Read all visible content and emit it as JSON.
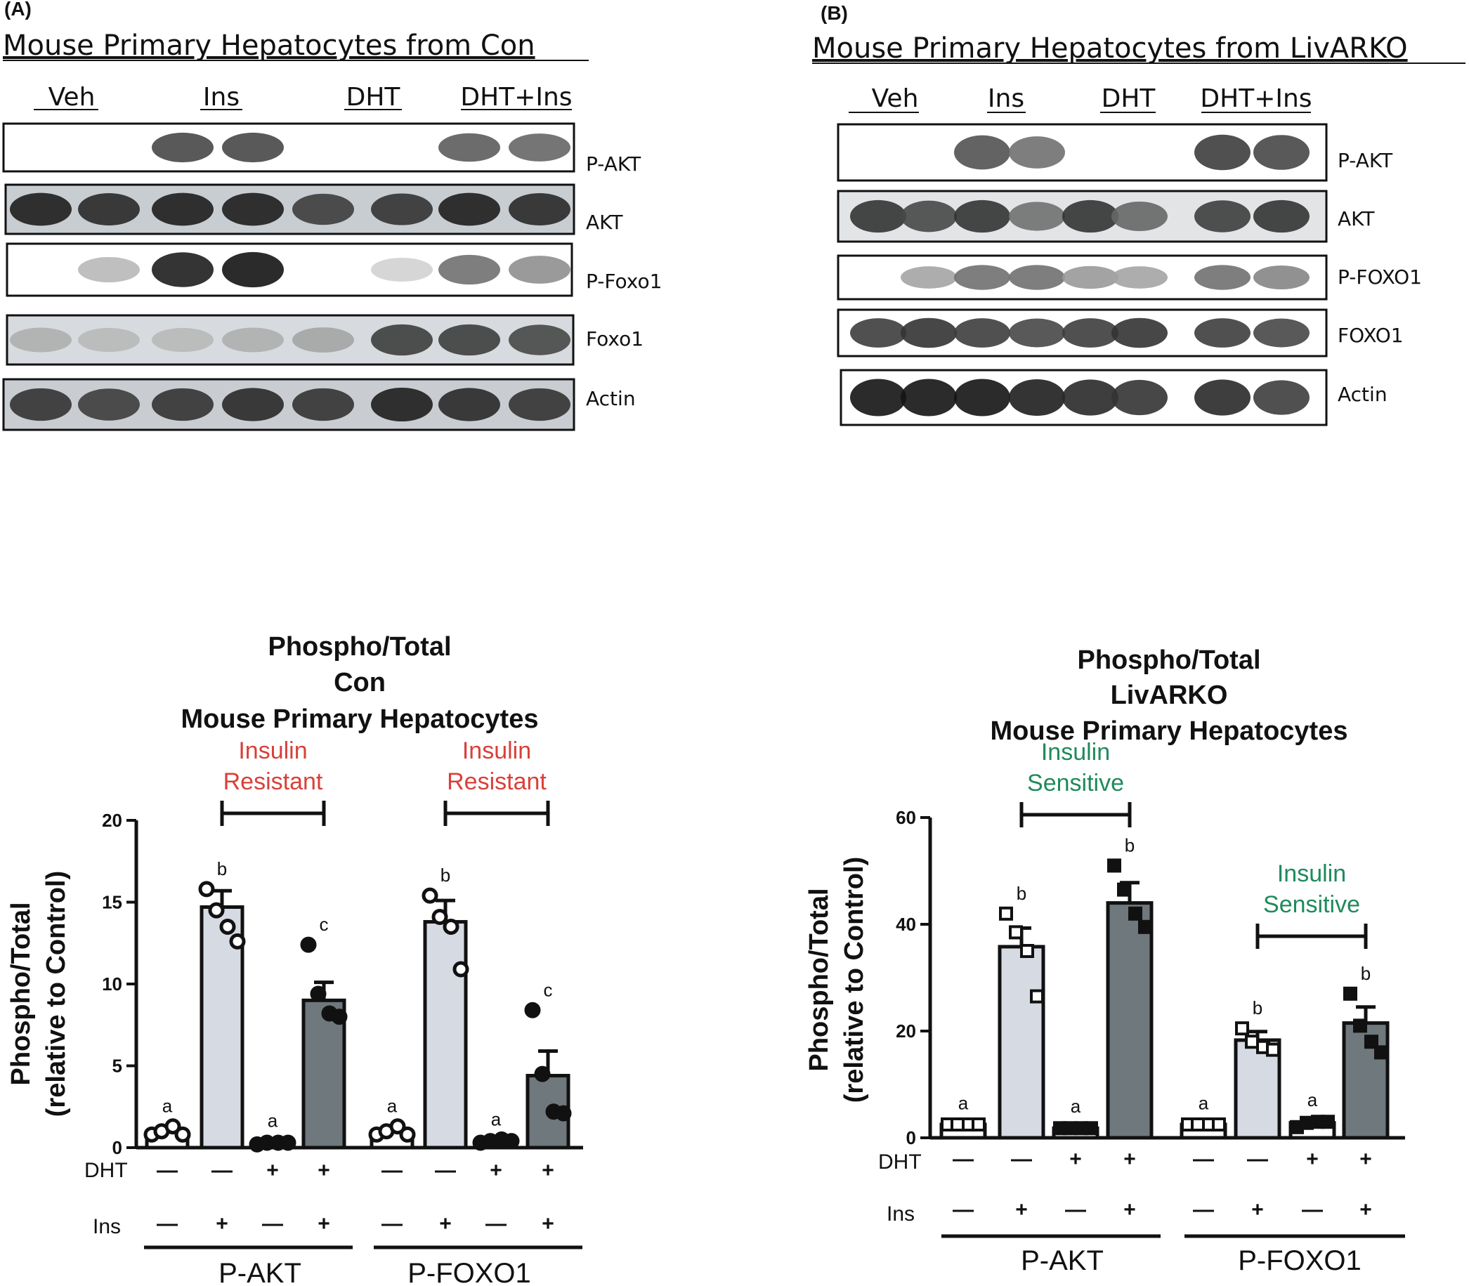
{
  "colors": {
    "insulin_resistant": "#d9403a",
    "insulin_sensitive": "#1f8a5c",
    "bar_light": "#d6dae2",
    "bar_dark": "#6f787c",
    "bar_white": "#ffffff"
  },
  "panel_a": {
    "label": "(A)",
    "title": "Mouse Primary Hepatocytes from Con",
    "lanes": [
      "Veh",
      "Ins",
      "DHT",
      "DHT+Ins"
    ],
    "blots": [
      "P-AKT",
      "AKT",
      "P-Foxo1",
      "Foxo1",
      "Actin"
    ]
  },
  "panel_b": {
    "label": "(B)",
    "title": "Mouse Primary Hepatocytes from LivARKO",
    "lanes": [
      "Veh",
      "Ins",
      "DHT",
      "DHT+Ins"
    ],
    "blots": [
      "P-AKT",
      "AKT",
      "P-FOXO1",
      "FOXO1",
      "Actin"
    ]
  },
  "chart_data": [
    {
      "type": "bar",
      "title_lines": [
        "Phospho/Total",
        "Con",
        "Mouse Primary Hepatocytes"
      ],
      "ylabel_lines": [
        "Phospho/Total",
        "(relative to Control)"
      ],
      "ylim": [
        0,
        20
      ],
      "yticks": [
        "0",
        "5",
        "10",
        "15",
        "20"
      ],
      "row_labels": [
        "DHT",
        "Ins"
      ],
      "dht": [
        "—",
        "—",
        "+",
        "+",
        "—",
        "—",
        "+",
        "+"
      ],
      "ins": [
        "—",
        "+",
        "—",
        "+",
        "—",
        "+",
        "—",
        "+"
      ],
      "groups": [
        "P-AKT",
        "P-FOXO1"
      ],
      "values": [
        1.0,
        14.7,
        0.3,
        9.0,
        1.0,
        13.8,
        0.4,
        4.4
      ],
      "errors": [
        0.3,
        1.0,
        0.1,
        1.1,
        0.3,
        1.3,
        0.1,
        1.5
      ],
      "letters": [
        "a",
        "b",
        "a",
        "c",
        "a",
        "b",
        "a",
        "c"
      ],
      "points": [
        [
          0.8,
          1.0,
          1.3,
          0.8
        ],
        [
          15.8,
          14.5,
          13.5,
          12.6
        ],
        [
          0.2,
          0.3,
          0.3,
          0.3
        ],
        [
          12.4,
          9.4,
          8.2,
          8.0
        ],
        [
          0.8,
          1.0,
          1.3,
          0.8
        ],
        [
          15.4,
          14.1,
          13.5,
          10.9
        ],
        [
          0.3,
          0.4,
          0.5,
          0.4
        ],
        [
          8.4,
          4.5,
          2.2,
          2.1
        ]
      ],
      "annotations": [
        {
          "text_lines": [
            "Insulin",
            "Resistant"
          ],
          "from_bar": 1,
          "to_bar": 3
        },
        {
          "text_lines": [
            "Insulin",
            "Resistant"
          ],
          "from_bar": 5,
          "to_bar": 7
        }
      ]
    },
    {
      "type": "bar",
      "title_lines": [
        "Phospho/Total",
        "LivARKO",
        "Mouse Primary Hepatocytes"
      ],
      "ylabel_lines": [
        "Phospho/Total",
        "(relative to Control)"
      ],
      "ylim": [
        0,
        60
      ],
      "yticks": [
        "0",
        "20",
        "40",
        "60"
      ],
      "row_labels": [
        "DHT",
        "Ins"
      ],
      "dht": [
        "—",
        "—",
        "+",
        "+",
        "—",
        "—",
        "+",
        "+"
      ],
      "ins": [
        "—",
        "+",
        "—",
        "+",
        "—",
        "+",
        "—",
        "+"
      ],
      "groups": [
        "P-AKT",
        "P-FOXO1"
      ],
      "values": [
        2.5,
        35.8,
        1.8,
        44.0,
        2.5,
        18.3,
        2.8,
        21.5
      ],
      "errors": [
        0.2,
        3.5,
        0.3,
        3.8,
        0.2,
        1.6,
        0.5,
        3.0
      ],
      "letters": [
        "a",
        "b",
        "a",
        "b",
        "a",
        "b",
        "a",
        "b"
      ],
      "points": [
        [
          2.5,
          2.5,
          2.5,
          2.5
        ],
        [
          42.0,
          38.5,
          35.0,
          26.5
        ],
        [
          1.8,
          1.8,
          1.8,
          1.8
        ],
        [
          51.0,
          46.5,
          42.0,
          39.5
        ],
        [
          2.5,
          2.5,
          2.5,
          2.5
        ],
        [
          20.5,
          18.0,
          17.0,
          16.5
        ],
        [
          2.0,
          2.8,
          3.0,
          3.0
        ],
        [
          27.0,
          21.0,
          18.0,
          16.0
        ]
      ],
      "annotations": [
        {
          "text_lines": [
            "Insulin",
            "Sensitive"
          ],
          "from_bar": 1,
          "to_bar": 3
        },
        {
          "text_lines": [
            "Insulin",
            "Sensitive"
          ],
          "from_bar": 5,
          "to_bar": 7
        }
      ]
    }
  ]
}
